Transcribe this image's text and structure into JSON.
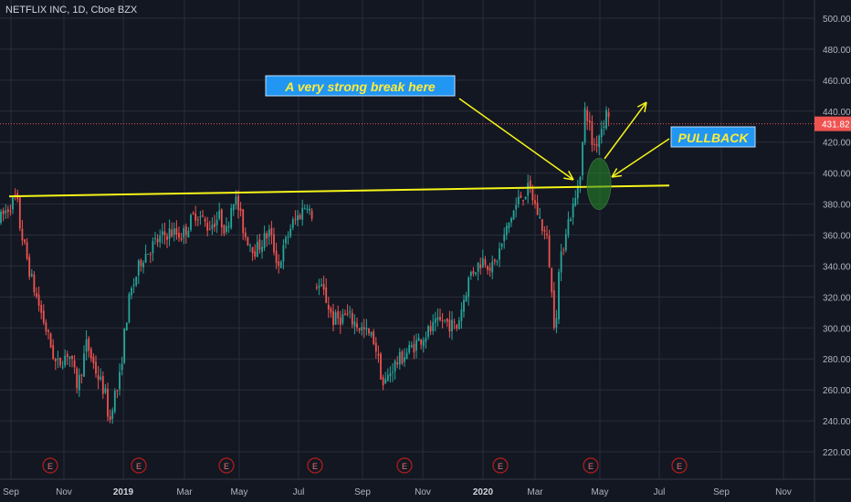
{
  "header": {
    "symbol_title": "NETFLIX INC, 1D, Cboe BZX"
  },
  "colors": {
    "up": "#26a69a",
    "down": "#ef5350",
    "line": "#f5f518",
    "grid": "#2a2e39",
    "bg": "#131722",
    "text": "#b2b5be"
  },
  "chart_data": {
    "type": "candlestick",
    "title": "NETFLIX INC, 1D, Cboe BZX",
    "ylim": [
      210,
      510
    ],
    "y_ticks": [
      "500.00",
      "480.00",
      "460.00",
      "440.00",
      "420.00",
      "400.00",
      "380.00",
      "360.00",
      "340.00",
      "320.00",
      "300.00",
      "280.00",
      "260.00",
      "240.00",
      "220.00"
    ],
    "x_ticks": [
      "Sep",
      "Nov",
      "2019",
      "Mar",
      "May",
      "Jul",
      "Sep",
      "Nov",
      "2020",
      "Mar",
      "May",
      "Jul",
      "Sep",
      "Nov"
    ],
    "last_price": "431.82",
    "earnings_marker": "E",
    "earnings_count": 8,
    "resistance_line": {
      "y_start": 385,
      "y_end": 392
    },
    "anchors": [
      [
        0,
        370
      ],
      [
        14,
        382
      ],
      [
        18,
        385
      ],
      [
        22,
        365
      ],
      [
        35,
        330
      ],
      [
        50,
        300
      ],
      [
        62,
        275
      ],
      [
        75,
        285
      ],
      [
        85,
        262
      ],
      [
        95,
        290
      ],
      [
        105,
        272
      ],
      [
        115,
        258
      ],
      [
        120,
        238
      ],
      [
        124,
        255
      ],
      [
        130,
        262
      ],
      [
        137,
        300
      ],
      [
        142,
        320
      ],
      [
        155,
        345
      ],
      [
        170,
        355
      ],
      [
        185,
        362
      ],
      [
        200,
        360
      ],
      [
        215,
        375
      ],
      [
        228,
        365
      ],
      [
        240,
        372
      ],
      [
        248,
        362
      ],
      [
        255,
        385
      ],
      [
        260,
        380
      ],
      [
        268,
        360
      ],
      [
        280,
        350
      ],
      [
        295,
        362
      ],
      [
        305,
        340
      ],
      [
        318,
        365
      ],
      [
        330,
        375
      ],
      [
        337,
        382
      ],
      [
        342,
        366
      ],
      [
        345,
        330
      ],
      [
        355,
        322
      ],
      [
        365,
        305
      ],
      [
        380,
        308
      ],
      [
        395,
        300
      ],
      [
        410,
        292
      ],
      [
        420,
        262
      ],
      [
        430,
        275
      ],
      [
        442,
        282
      ],
      [
        455,
        290
      ],
      [
        470,
        298
      ],
      [
        485,
        305
      ],
      [
        500,
        300
      ],
      [
        515,
        335
      ],
      [
        530,
        345
      ],
      [
        540,
        338
      ],
      [
        550,
        355
      ],
      [
        560,
        372
      ],
      [
        570,
        385
      ],
      [
        580,
        390
      ],
      [
        590,
        372
      ],
      [
        600,
        355
      ],
      [
        605,
        315
      ],
      [
        608,
        298
      ],
      [
        612,
        335
      ],
      [
        620,
        365
      ],
      [
        630,
        382
      ],
      [
        637,
        408
      ],
      [
        640,
        440
      ],
      [
        644,
        437
      ],
      [
        648,
        420
      ],
      [
        652,
        418
      ],
      [
        656,
        425
      ],
      [
        660,
        432
      ],
      [
        665,
        440
      ],
      [
        668,
        438
      ]
    ],
    "annotations": [
      {
        "text": "A very strong break here"
      },
      {
        "text": "PULLBACK"
      }
    ]
  }
}
